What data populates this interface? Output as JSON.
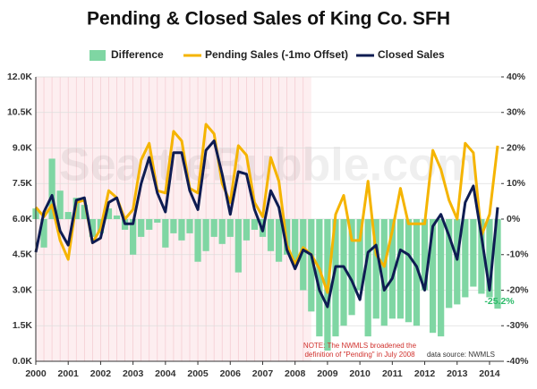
{
  "chart_data": {
    "type": "line",
    "title": "Pending & Closed Sales of King Co. SFH",
    "x": [
      2000,
      2000.25,
      2000.5,
      2000.75,
      2001,
      2001.25,
      2001.5,
      2001.75,
      2002,
      2002.25,
      2002.5,
      2002.75,
      2003,
      2003.25,
      2003.5,
      2003.75,
      2004,
      2004.25,
      2004.5,
      2004.75,
      2005,
      2005.25,
      2005.5,
      2005.75,
      2006,
      2006.25,
      2006.5,
      2006.75,
      2007,
      2007.25,
      2007.5,
      2007.75,
      2008,
      2008.25,
      2008.5,
      2008.75,
      2009,
      2009.25,
      2009.5,
      2009.75,
      2010,
      2010.25,
      2010.5,
      2010.75,
      2011,
      2011.25,
      2011.5,
      2011.75,
      2012,
      2012.25,
      2012.5,
      2012.75,
      2013,
      2013.25,
      2013.5,
      2013.75,
      2014,
      2014.25
    ],
    "series": [
      {
        "name": "Difference",
        "type": "bar",
        "axis": "y2",
        "color": "#7fd6a3",
        "values": [
          3,
          -8,
          17,
          8,
          2,
          6,
          4,
          -5,
          -4,
          3,
          1,
          -3,
          -10,
          -5,
          -3,
          -1,
          -8,
          -4,
          -6,
          -4,
          -12,
          -9,
          -5,
          -7,
          -5,
          -15,
          -6,
          -3,
          -5,
          -9,
          -12,
          -10,
          -12,
          -20,
          -26,
          -33,
          -37,
          -33,
          -30,
          -27,
          -20,
          -33,
          -28,
          -30,
          -28,
          -28,
          -29,
          -30,
          -20,
          -32,
          -33,
          -25,
          -24,
          -22,
          -19,
          -21,
          -22,
          -25.2
        ]
      },
      {
        "name": "Pending Sales (-1mo Offset)",
        "type": "line",
        "color": "#f5b400",
        "values": [
          6500,
          6100,
          6600,
          5100,
          4300,
          6700,
          6800,
          5000,
          5600,
          7200,
          6900,
          6000,
          6400,
          8500,
          9200,
          7200,
          7100,
          9700,
          9300,
          7300,
          7100,
          10000,
          9600,
          7500,
          6700,
          9100,
          8700,
          6700,
          6100,
          8600,
          7600,
          4900,
          4100,
          4800,
          4500,
          3900,
          2900,
          6200,
          7000,
          5100,
          5100,
          7600,
          4500,
          4000,
          5500,
          7300,
          5800,
          5800,
          5800,
          8900,
          8100,
          6800,
          6000,
          9200,
          8800,
          5300,
          6200,
          9100
        ]
      },
      {
        "name": "Closed Sales",
        "type": "line",
        "color": "#0e1c52",
        "values": [
          4600,
          6300,
          7000,
          5500,
          4900,
          6800,
          6900,
          5000,
          5200,
          6700,
          6900,
          5800,
          5800,
          7500,
          8600,
          7100,
          6300,
          8800,
          8800,
          7200,
          6400,
          8900,
          9300,
          7900,
          6200,
          8000,
          7900,
          6400,
          5500,
          7200,
          6500,
          4700,
          3900,
          4700,
          4500,
          3000,
          2300,
          4000,
          4000,
          3400,
          2600,
          4600,
          4900,
          3000,
          3500,
          4700,
          4500,
          4000,
          3000,
          5700,
          6200,
          5300,
          4300,
          6700,
          7400,
          5300,
          3000,
          6500
        ]
      }
    ],
    "xlim": [
      2000,
      2014.36
    ],
    "xticks": [
      2000,
      2001,
      2002,
      2003,
      2004,
      2005,
      2006,
      2007,
      2008,
      2009,
      2010,
      2011,
      2012,
      2013,
      2014
    ],
    "ylim": [
      0,
      12000
    ],
    "yticks": [
      {
        "value": 0,
        "label": "0.0K"
      },
      {
        "value": 1500,
        "label": "1.5K"
      },
      {
        "value": 3000,
        "label": "3.0K"
      },
      {
        "value": 4500,
        "label": "4.5K"
      },
      {
        "value": 6000,
        "label": "6.0K"
      },
      {
        "value": 7500,
        "label": "7.5K"
      },
      {
        "value": 9000,
        "label": "9.0K"
      },
      {
        "value": 10500,
        "label": "10.5K"
      },
      {
        "value": 12000,
        "label": "12.0K"
      }
    ],
    "y2lim": [
      -40,
      40
    ],
    "y2ticks": [
      {
        "value": -40,
        "label": "-40%"
      },
      {
        "value": -30,
        "label": "-30%"
      },
      {
        "value": -20,
        "label": "-20%"
      },
      {
        "value": -10,
        "label": "-10%"
      },
      {
        "value": 0,
        "label": "0%"
      },
      {
        "value": 10,
        "label": "10%"
      },
      {
        "value": 20,
        "label": "20%"
      },
      {
        "value": 30,
        "label": "30%"
      },
      {
        "value": 40,
        "label": "40%"
      }
    ],
    "shaded_xrange": [
      2000,
      2008.5
    ],
    "grid": true,
    "legend": "top",
    "last_value_label": "-25.2%",
    "note": [
      "NOTE: The NWMLS broadened the",
      "definition of \"Pending\" in July 2008"
    ],
    "source": "data source: NWMLS",
    "watermark": "SeattleBubble.com"
  }
}
